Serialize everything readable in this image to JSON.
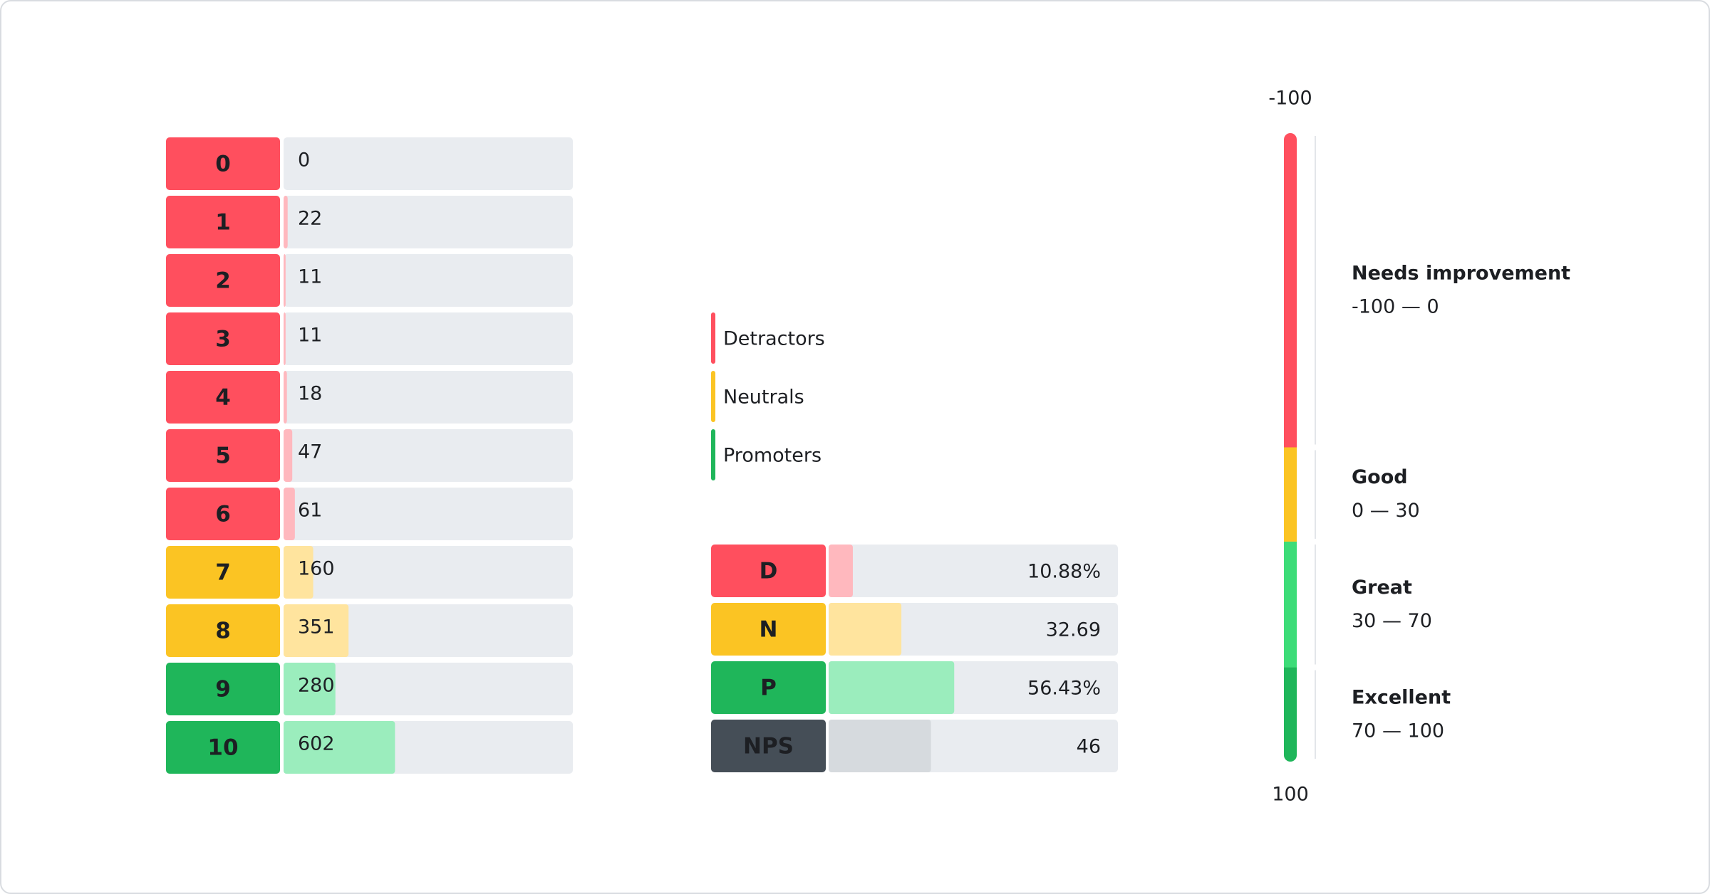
{
  "chart_data": [
    {
      "type": "bar",
      "orientation": "horizontal",
      "categories": [
        "0",
        "1",
        "2",
        "3",
        "4",
        "5",
        "6",
        "7",
        "8",
        "9",
        "10"
      ],
      "values": [
        0,
        22,
        11,
        11,
        18,
        47,
        61,
        160,
        351,
        280,
        602
      ],
      "colors": [
        "#ff4f5e",
        "#ff4f5e",
        "#ff4f5e",
        "#ff4f5e",
        "#ff4f5e",
        "#ff4f5e",
        "#ff4f5e",
        "#fbc423",
        "#fbc423",
        "#1fb65a",
        "#1fb65a"
      ],
      "bar_colors": [
        "#ffb8be",
        "#ffb8be",
        "#ffb8be",
        "#ffb8be",
        "#ffb8be",
        "#ffb8be",
        "#ffb8be",
        "#ffe49e",
        "#ffe49e",
        "#9bedbd",
        "#9bedbd"
      ],
      "xlim": [
        0,
        1563
      ]
    },
    {
      "type": "bar",
      "orientation": "horizontal",
      "categories": [
        "D",
        "N",
        "P",
        "NPS"
      ],
      "values": [
        10.88,
        32.69,
        56.43,
        46
      ],
      "value_labels": [
        "10.88%",
        "32.69",
        "56.43%",
        "46"
      ],
      "colors": [
        "#ff4f5e",
        "#fbc423",
        "#1fb65a",
        "#454e57"
      ],
      "bar_colors": [
        "#ffb8be",
        "#ffe49e",
        "#9bedbd",
        "#d6dade"
      ],
      "xlim": [
        0,
        130
      ],
      "legend": [
        {
          "name": "Detractors",
          "color": "#ff4f5e"
        },
        {
          "name": "Neutrals",
          "color": "#fbc423"
        },
        {
          "name": "Promoters",
          "color": "#1fb65a"
        }
      ]
    },
    {
      "type": "gauge",
      "ylim": [
        -100,
        100
      ],
      "yticks": [
        -100,
        100
      ],
      "ranges": [
        {
          "name": "Needs improvement",
          "from": -100,
          "to": 0,
          "label": "-100 — 0",
          "color": "#ff4f5e"
        },
        {
          "name": "Good",
          "from": 0,
          "to": 30,
          "label": "0 — 30",
          "color": "#fbc423"
        },
        {
          "name": "Great",
          "from": 30,
          "to": 70,
          "label": "30 — 70",
          "color": "#3ddc78"
        },
        {
          "name": "Excellent",
          "from": 70,
          "to": 100,
          "label": "70 — 100",
          "color": "#1fb65a"
        }
      ]
    }
  ]
}
